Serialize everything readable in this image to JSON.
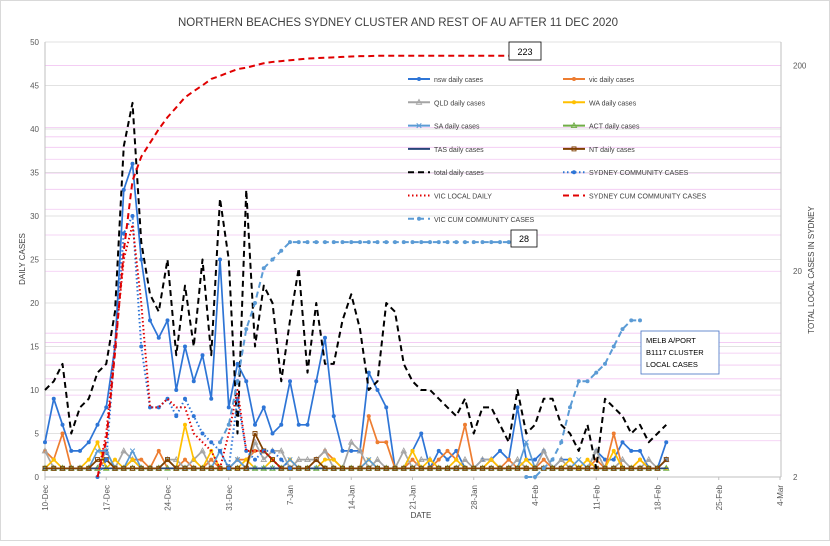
{
  "chart_data": {
    "type": "line",
    "title": "NORTHERN BEACHES SYDNEY CLUSTER AND REST OF AU AFTER 11 DEC 2020",
    "xlabel": "DATE",
    "ylabel": "DAILY CASES",
    "y2label": "TOTAL LOCAL CASES IN SYDNEY",
    "x_start": "2020-12-10",
    "x_ticks": [
      "10-Dec",
      "17-Dec",
      "24-Dec",
      "31-Dec",
      "7-Jan",
      "14-Jan",
      "21-Jan",
      "28-Jan",
      "4-Feb",
      "11-Feb",
      "18-Feb",
      "25-Feb",
      "4-Mar"
    ],
    "ylim": [
      0,
      50
    ],
    "yticks": [
      0,
      5,
      10,
      15,
      20,
      25,
      30,
      35,
      40,
      45,
      50
    ],
    "y2_scale": "log",
    "y2lim": [
      2,
      260
    ],
    "y2ticks": [
      2,
      20,
      200
    ],
    "grid": true,
    "legend_position": "top-right",
    "series": [
      {
        "name": "nsw daily cases",
        "color": "#2e75d6",
        "style": "solid",
        "marker": "dot",
        "axis": "left",
        "start": "2020-12-10",
        "values": [
          4,
          9,
          6,
          3,
          3,
          4,
          6,
          8,
          15,
          33,
          36,
          25,
          18,
          16,
          18,
          10,
          15,
          11,
          14,
          9,
          25,
          8,
          13,
          11,
          6,
          8,
          5,
          6,
          11,
          6,
          6,
          11,
          16,
          7,
          3,
          3,
          3,
          12,
          10,
          8,
          1,
          1,
          3,
          5,
          1,
          3,
          2,
          3,
          1,
          1,
          2,
          2,
          3,
          2,
          8,
          2,
          2,
          3,
          1,
          2,
          2,
          1,
          1,
          3,
          2,
          2,
          4,
          3,
          3,
          1,
          1,
          4
        ]
      },
      {
        "name": "vic daily cases",
        "color": "#ed7d31",
        "style": "solid",
        "marker": "dot",
        "axis": "left",
        "start": "2020-12-10",
        "values": [
          3,
          2,
          5,
          1,
          1,
          1,
          1,
          2,
          1,
          1,
          2,
          2,
          1,
          3,
          1,
          1,
          2,
          1,
          1,
          2,
          1,
          1,
          2,
          2,
          3,
          3,
          2,
          1,
          2,
          1,
          1,
          2,
          3,
          2,
          1,
          1,
          1,
          7,
          4,
          4,
          1,
          1,
          2,
          1,
          1,
          2,
          3,
          2,
          6,
          1,
          1,
          2,
          1,
          2,
          1,
          1,
          1,
          2,
          1,
          1,
          1,
          1,
          1,
          2,
          1,
          5,
          1,
          1,
          2,
          1,
          1,
          2
        ]
      },
      {
        "name": "QLD daily cases",
        "color": "#a5a5a5",
        "style": "solid",
        "marker": "triangle",
        "axis": "left",
        "start": "2020-12-10",
        "values": [
          3,
          1,
          1,
          1,
          1,
          1,
          1,
          3,
          1,
          3,
          2,
          1,
          1,
          1,
          2,
          2,
          1,
          2,
          3,
          1,
          1,
          1,
          2,
          1,
          4,
          2,
          3,
          3,
          1,
          2,
          2,
          2,
          3,
          1,
          1,
          4,
          3,
          1,
          2,
          1,
          1,
          3,
          1,
          2,
          2,
          1,
          1,
          1,
          2,
          1,
          2,
          2,
          1,
          1,
          2,
          1,
          1,
          3,
          1,
          2,
          1,
          1,
          1,
          3,
          1,
          1,
          2,
          1,
          1,
          2,
          1,
          2
        ]
      },
      {
        "name": "WA  daily cases",
        "color": "#ffc000",
        "style": "solid",
        "marker": "dot",
        "axis": "left",
        "start": "2020-12-10",
        "values": [
          1,
          2,
          1,
          1,
          1,
          2,
          4,
          1,
          2,
          1,
          2,
          1,
          1,
          1,
          2,
          1,
          6,
          2,
          1,
          3,
          1,
          1,
          1,
          2,
          1,
          1,
          2,
          1,
          2,
          1,
          1,
          1,
          2,
          2,
          1,
          1,
          1,
          2,
          1,
          1,
          1,
          1,
          3,
          1,
          2,
          1,
          1,
          2,
          1,
          1,
          1,
          2,
          1,
          1,
          1,
          2,
          1,
          1,
          1,
          1,
          2,
          1,
          2,
          1,
          1,
          3,
          1,
          1,
          2,
          1,
          1,
          1
        ]
      },
      {
        "name": "SA  daily cases",
        "color": "#5b9bd5",
        "style": "solid",
        "marker": "x",
        "axis": "left",
        "start": "2020-12-10",
        "values": [
          1,
          1,
          1,
          1,
          1,
          1,
          3,
          3,
          1,
          1,
          3,
          1,
          1,
          1,
          2,
          1,
          1,
          1,
          1,
          1,
          3,
          1,
          2,
          1,
          1,
          1,
          1,
          1,
          2,
          1,
          1,
          1,
          1,
          1,
          1,
          1,
          1,
          2,
          1,
          1,
          1,
          1,
          1,
          1,
          1,
          1,
          1,
          1,
          1,
          1,
          1,
          1,
          1,
          1,
          1,
          4,
          1,
          1,
          1,
          1,
          1,
          2,
          1,
          1,
          1,
          1,
          1,
          1,
          1,
          1,
          1,
          2
        ]
      },
      {
        "name": "ACT daily cases",
        "color": "#70ad47",
        "style": "solid",
        "marker": "triangle",
        "axis": "left",
        "start": "2020-12-10",
        "values": [
          1,
          1,
          1,
          1,
          1,
          1,
          1,
          1,
          1,
          1,
          1,
          1,
          1,
          1,
          1,
          1,
          1,
          1,
          1,
          1,
          1,
          1,
          1,
          1,
          1,
          1,
          1,
          1,
          1,
          1,
          1,
          1,
          1,
          1,
          1,
          1,
          1,
          1,
          1,
          1,
          1,
          1,
          1,
          1,
          1,
          1,
          1,
          1,
          1,
          1,
          1,
          1,
          1,
          1,
          1,
          1,
          1,
          1,
          1,
          1,
          1,
          1,
          1,
          1,
          1,
          1,
          1,
          1,
          1,
          1,
          1,
          1
        ]
      },
      {
        "name": "TAS daily cases",
        "color": "#264478",
        "style": "solid",
        "marker": "dash",
        "axis": "left",
        "start": "2020-12-10",
        "values": [
          1,
          1,
          1,
          1,
          1,
          1,
          1,
          1,
          1,
          1,
          1,
          1,
          1,
          1,
          1,
          1,
          1,
          1,
          1,
          1,
          1,
          1,
          1,
          1,
          1,
          1,
          1,
          1,
          1,
          1,
          1,
          1,
          1,
          1,
          1,
          1,
          1,
          1,
          1,
          1,
          1,
          1,
          1,
          1,
          1,
          1,
          1,
          1,
          1,
          1,
          1,
          1,
          1,
          1,
          1,
          1,
          1,
          1,
          1,
          1,
          1,
          1,
          1,
          1,
          1,
          1,
          1,
          1,
          1,
          1,
          1,
          1
        ]
      },
      {
        "name": "NT daily cases",
        "color": "#7f3f00",
        "style": "solid",
        "marker": "square",
        "axis": "left",
        "start": "2020-12-10",
        "values": [
          1,
          1,
          1,
          1,
          1,
          1,
          2,
          2,
          1,
          1,
          1,
          1,
          1,
          1,
          2,
          1,
          1,
          1,
          1,
          1,
          1,
          1,
          1,
          1,
          5,
          3,
          2,
          1,
          1,
          1,
          1,
          2,
          1,
          1,
          1,
          1,
          1,
          1,
          1,
          1,
          1,
          1,
          1,
          1,
          1,
          1,
          1,
          1,
          1,
          1,
          1,
          1,
          1,
          1,
          1,
          1,
          1,
          1,
          1,
          1,
          1,
          1,
          1,
          1,
          1,
          1,
          1,
          1,
          1,
          1,
          1,
          2
        ]
      },
      {
        "name": "total daily cases",
        "color": "#000000",
        "style": "dash",
        "marker": "none",
        "axis": "left",
        "start": "2020-12-10",
        "values": [
          10,
          11,
          13,
          5,
          8,
          9,
          12,
          13,
          19,
          38,
          43,
          27,
          21,
          19,
          25,
          14,
          22,
          15,
          25,
          14,
          32,
          25,
          5,
          33,
          15,
          22,
          20,
          11,
          18,
          24,
          12,
          20,
          13,
          13,
          18,
          21,
          17,
          10,
          11,
          20,
          19,
          13,
          11,
          10,
          10,
          9,
          8,
          7,
          9,
          5,
          8,
          8,
          6,
          4,
          10,
          5,
          6,
          9,
          9,
          6,
          5,
          3,
          6,
          1,
          9,
          8,
          7,
          5,
          6,
          4,
          5,
          6
        ]
      },
      {
        "name": "SYDNEY COMMUNITY CASES",
        "color": "#2e75d6",
        "style": "dot",
        "marker": "dot",
        "axis": "left",
        "start": "2020-12-16",
        "values": [
          0,
          2,
          15,
          28,
          30,
          15,
          8,
          8,
          9,
          7,
          9,
          7,
          5,
          4,
          3,
          1,
          9,
          3,
          2,
          3,
          3,
          2,
          1
        ]
      },
      {
        "name": "VIC LOCAL DAILY",
        "color": "#e00000",
        "style": "dot",
        "marker": "none",
        "axis": "left",
        "start": "2020-12-16",
        "values": [
          0,
          5,
          15,
          25,
          29,
          20,
          8,
          8,
          9,
          8,
          8,
          5,
          4,
          3,
          1,
          5,
          10,
          3,
          3,
          3,
          2,
          1
        ]
      },
      {
        "name": "SYDNEY CUM COMMUNITY CASES",
        "color": "#e00000",
        "style": "dash",
        "marker": "none",
        "axis": "right",
        "start": "2020-12-16",
        "values": [
          1.5,
          3,
          8,
          25,
          55,
          72,
          84,
          98,
          112,
          125,
          140,
          150,
          160,
          172,
          178,
          185,
          192,
          195,
          200,
          205,
          208,
          210,
          212,
          214,
          216,
          217,
          218,
          219,
          220,
          221,
          222,
          222,
          223,
          223,
          223,
          223,
          223,
          223,
          223,
          223,
          223,
          223,
          223,
          223,
          223,
          223,
          223,
          223,
          223,
          223
        ]
      },
      {
        "name": "VIC CUM COMMUNITY CASES",
        "color": "#5b9bd5",
        "style": "dash",
        "marker": "dot",
        "axis": "left",
        "start": "2020-12-30",
        "values": [
          4,
          6,
          11,
          17,
          20,
          24,
          25,
          26,
          27,
          27,
          27,
          27,
          27,
          27,
          27,
          27,
          27,
          27,
          27,
          27,
          27,
          27,
          27,
          27,
          27,
          27,
          27,
          27,
          27,
          27,
          27,
          27,
          27,
          27
        ]
      },
      {
        "name": "MELB A/PORT B1117 CLUSTER LOCAL CASES",
        "color": "#5b9bd5",
        "style": "dash",
        "marker": "dot",
        "axis": "left",
        "start": "2021-02-03",
        "values": [
          0,
          0,
          1,
          2,
          4,
          8,
          11,
          11,
          12,
          13,
          15,
          17,
          18,
          18
        ]
      }
    ],
    "callouts": [
      {
        "id": "callout-223",
        "text": "223"
      },
      {
        "id": "callout-28",
        "text": "28"
      },
      {
        "id": "callout-melb",
        "lines": [
          "MELB A/PORT",
          "B1117 CLUSTER",
          "LOCAL CASES"
        ]
      }
    ]
  }
}
